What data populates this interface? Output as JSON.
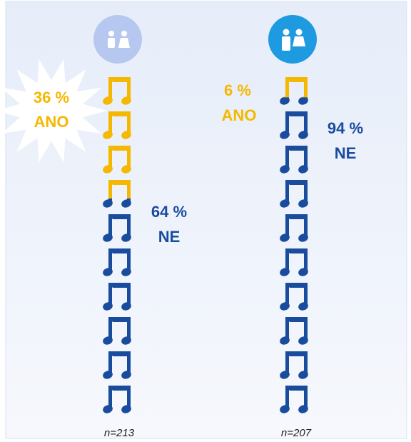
{
  "chart_data": {
    "type": "pictogram",
    "categories": [
      "n=213",
      "n=207"
    ],
    "series": [
      {
        "name": "ANO",
        "color": "#f5b800",
        "values": [
          36,
          6
        ],
        "value_labels": [
          "36 %",
          "6 %"
        ]
      },
      {
        "name": "NE",
        "color": "#1a4c9e",
        "values": [
          64,
          94
        ],
        "value_labels": [
          "64 %",
          "94 %"
        ]
      }
    ]
  }
}
